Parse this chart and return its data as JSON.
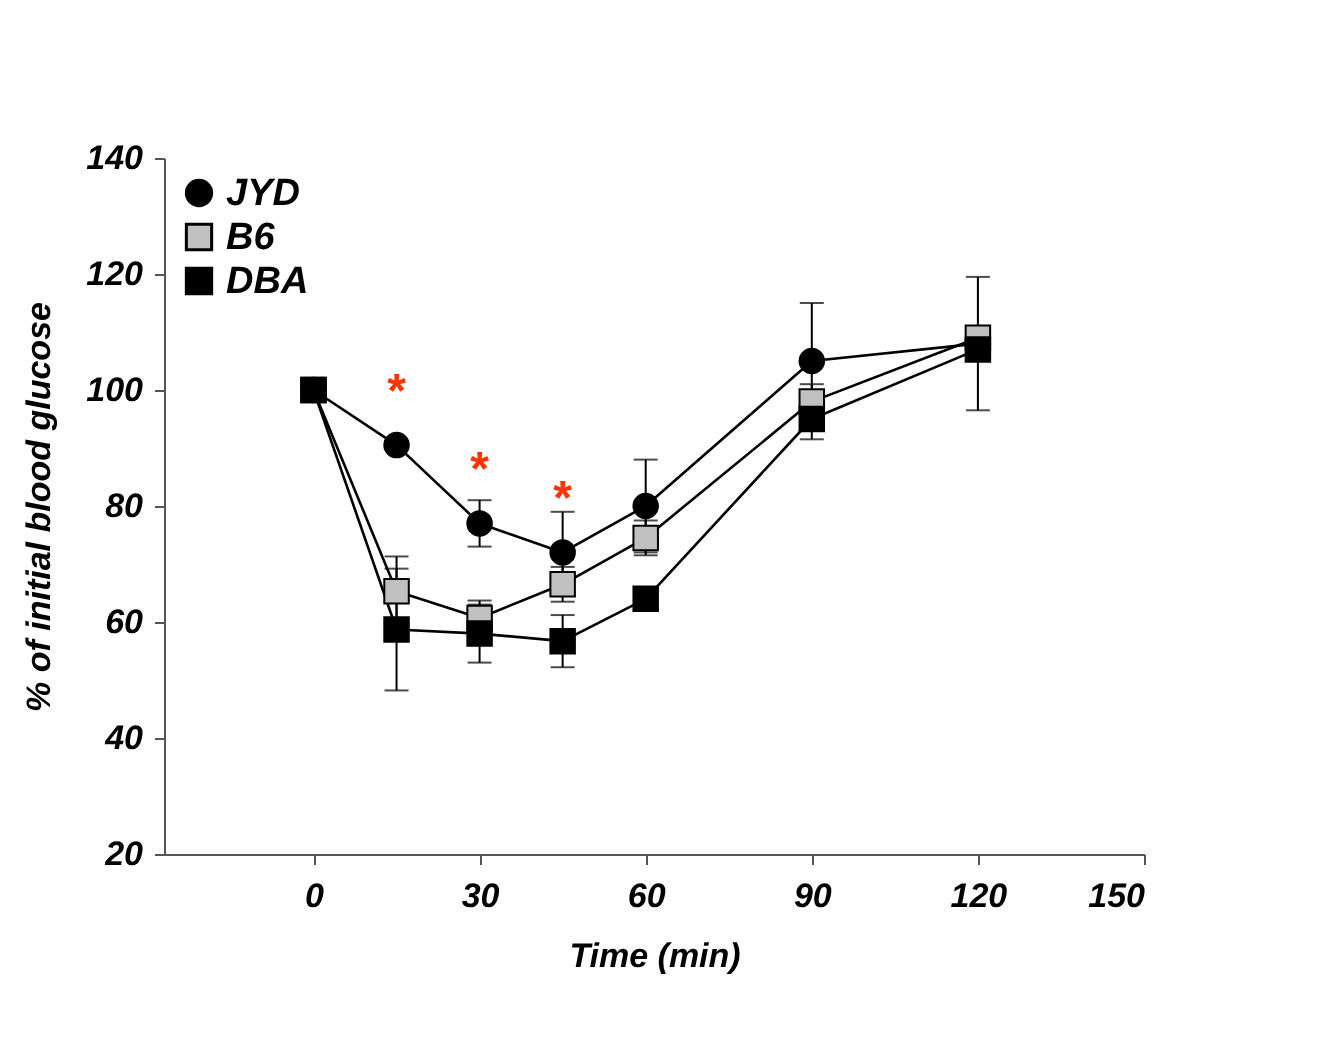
{
  "chart_data": {
    "type": "line",
    "xlabel": "Time (min)",
    "ylabel": "% of initial blood glucose",
    "x": [
      0,
      15,
      30,
      45,
      60,
      90,
      120
    ],
    "series": [
      {
        "name": "JYD",
        "color": "#000000",
        "marker": "circle",
        "values": [
          100,
          90.5,
          77,
          72,
          80,
          105,
          108
        ],
        "errors": [
          null,
          null,
          4,
          7,
          8,
          10,
          11.5
        ]
      },
      {
        "name": "B6",
        "color": "#c0c0c0",
        "marker": "square",
        "values": [
          100,
          65.3,
          60.7,
          66.5,
          74.5,
          98,
          109
        ],
        "errors": [
          null,
          6,
          3,
          3,
          3,
          3,
          1.5
        ]
      },
      {
        "name": "DBA",
        "color": "#000000",
        "marker": "square",
        "values": [
          100,
          58.7,
          58,
          56.7,
          64,
          95,
          107
        ],
        "errors": [
          null,
          10.5,
          5,
          4.5,
          1,
          3.5,
          2
        ]
      }
    ],
    "annotations": [
      {
        "text": "*",
        "x": 15,
        "y": 90.5
      },
      {
        "text": "*",
        "x": 30,
        "y": 77
      },
      {
        "text": "*",
        "x": 45,
        "y": 72
      }
    ],
    "xlim": [
      -27,
      150
    ],
    "xticks": [
      0,
      30,
      60,
      90,
      120,
      150
    ],
    "ylim": [
      20,
      140
    ],
    "yticks": [
      20,
      40,
      60,
      80,
      100,
      120,
      140
    ],
    "grid": false,
    "legend": "top left"
  }
}
